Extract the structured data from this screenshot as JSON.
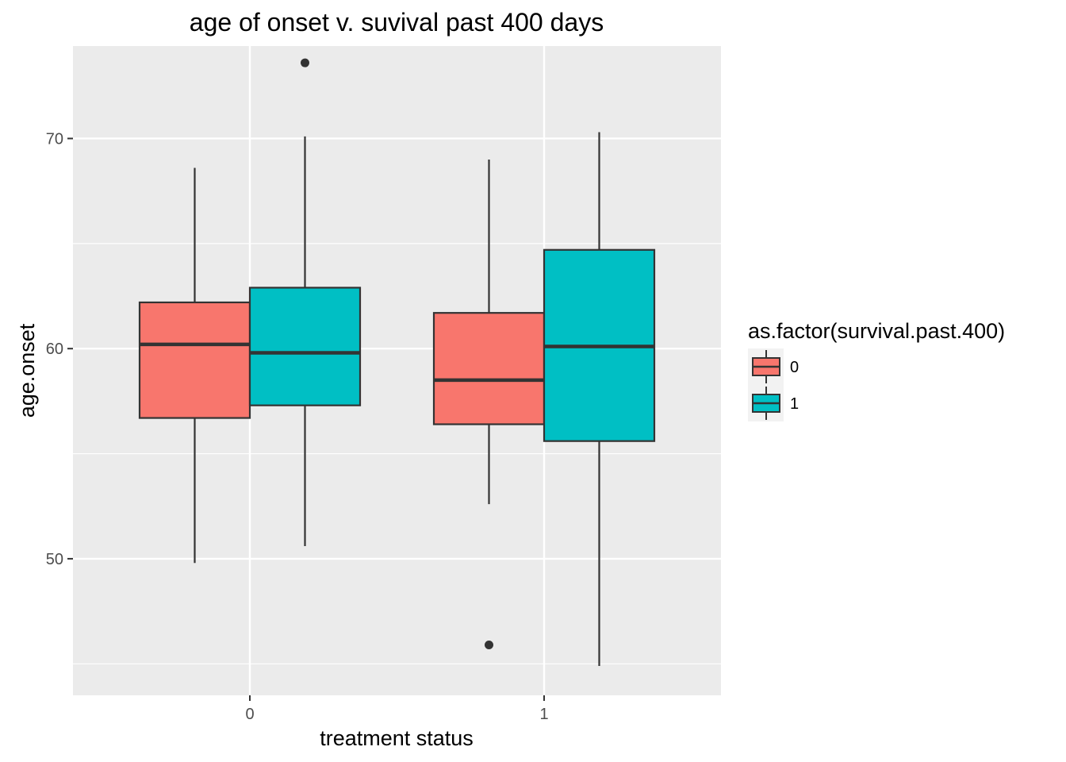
{
  "chart_data": {
    "type": "boxplot",
    "title": "age of onset v. suvival past 400 days",
    "xlabel": "treatment status",
    "ylabel": "age.onset",
    "categories": [
      "0",
      "1"
    ],
    "ylim": [
      43.5,
      74.4
    ],
    "yticks": [
      50,
      60,
      70
    ],
    "grid": true,
    "legend": {
      "title": "as.factor(survival.past.400)",
      "position": "right",
      "entries": [
        "0",
        "1"
      ]
    },
    "series": [
      {
        "name": "0",
        "color": "#F8766D",
        "boxes": [
          {
            "category": "0",
            "lower_whisker": 49.8,
            "q1": 56.7,
            "median": 60.2,
            "q3": 62.2,
            "upper_whisker": 68.6,
            "outliers": []
          },
          {
            "category": "1",
            "lower_whisker": 52.6,
            "q1": 56.4,
            "median": 58.5,
            "q3": 61.7,
            "upper_whisker": 69.0,
            "outliers": [
              45.9
            ]
          }
        ]
      },
      {
        "name": "1",
        "color": "#00BFC4",
        "boxes": [
          {
            "category": "0",
            "lower_whisker": 50.6,
            "q1": 57.3,
            "median": 59.8,
            "q3": 62.9,
            "upper_whisker": 70.1,
            "outliers": [
              73.6
            ]
          },
          {
            "category": "1",
            "lower_whisker": 44.9,
            "q1": 55.6,
            "median": 60.1,
            "q3": 64.7,
            "upper_whisker": 70.3,
            "outliers": []
          }
        ]
      }
    ]
  }
}
